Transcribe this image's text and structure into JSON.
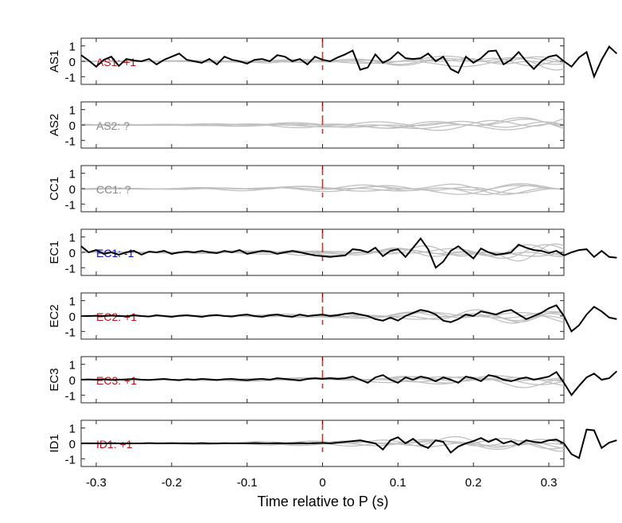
{
  "figure": {
    "xlabel": "Time relative to P (s)"
  },
  "colors": {
    "trace": "#000000",
    "background_traces": "#c0c0c0",
    "p_marker": "#e8251e",
    "label_positive": "#c0141b",
    "label_negative": "#0a10b4",
    "label_unknown": "#8a8a8a",
    "axes": "#262626"
  },
  "chart_data": {
    "type": "line",
    "xlim": [
      -0.32,
      0.32
    ],
    "ylim": [
      -1.5,
      1.5
    ],
    "x_ticks": [
      -0.3,
      -0.2,
      -0.1,
      0,
      0.1,
      0.2,
      0.3
    ],
    "x_tick_labels": [
      "-0.3",
      "-0.2",
      "-0.1",
      "0",
      "0.1",
      "0.2",
      "0.3"
    ],
    "y_ticks": [
      -1,
      0,
      1
    ],
    "y_tick_labels": [
      "-1",
      "0",
      "1"
    ],
    "p_marker_x": 0,
    "x_step": 0.01,
    "x_start": -0.32,
    "panels": [
      {
        "station": "AS1",
        "label": "AS1: +1",
        "polarity": "positive",
        "values": [
          0.4,
          0.05,
          -0.35,
          0.1,
          0.3,
          -0.3,
          0.15,
          0.05,
          0.0,
          0.15,
          -0.2,
          0.1,
          0.3,
          0.5,
          0.1,
          0.0,
          -0.1,
          0.15,
          -0.2,
          0.3,
          0.1,
          0.0,
          -0.15,
          0.1,
          0.15,
          0.0,
          0.4,
          0.3,
          0.0,
          0.15,
          -0.2,
          0.3,
          0.1,
          0.0,
          0.25,
          0.45,
          0.7,
          -0.55,
          -0.4,
          0.45,
          -0.1,
          0.15,
          0.6,
          0.2,
          0.15,
          0.2,
          0.5,
          0.0,
          0.3,
          -0.5,
          -0.75,
          0.3,
          -0.1,
          0.2,
          0.65,
          0.7,
          -0.2,
          0.1,
          0.6,
          0.0,
          -0.5,
          0.0,
          0.3,
          0.4,
          0.0,
          -0.35,
          0.25,
          0.6,
          -1.0,
          0.1,
          0.95,
          0.5
        ]
      },
      {
        "station": "AS2",
        "label": "AS2: ?",
        "polarity": "unknown",
        "values": []
      },
      {
        "station": "CC1",
        "label": "CC1: ?",
        "polarity": "unknown",
        "values": []
      },
      {
        "station": "EC1",
        "label": "EC1: -1",
        "polarity": "negative",
        "values": [
          0.4,
          0.0,
          0.15,
          -0.1,
          0.0,
          -0.15,
          0.0,
          0.1,
          -0.15,
          0.05,
          0.0,
          0.1,
          -0.1,
          0.0,
          0.05,
          0.0,
          0.1,
          0.0,
          -0.05,
          0.1,
          0.0,
          0.15,
          -0.1,
          0.0,
          0.1,
          0.05,
          -0.1,
          0.0,
          0.1,
          0.0,
          -0.1,
          -0.2,
          -0.25,
          -0.3,
          -0.25,
          -0.2,
          0.2,
          0.15,
          0.0,
          0.3,
          -0.25,
          0.1,
          0.2,
          -0.3,
          0.3,
          0.9,
          0.2,
          -1.0,
          -0.6,
          0.1,
          0.4,
          0.0,
          -0.4,
          0.25,
          0.0,
          -0.15,
          -0.1,
          0.0,
          0.5,
          0.3,
          0.15,
          0.1,
          -0.05,
          0.1,
          -0.2,
          0.0,
          0.15,
          0.2,
          -0.3,
          0.1,
          -0.3,
          -0.35
        ]
      },
      {
        "station": "EC2",
        "label": "EC2: +1",
        "polarity": "positive",
        "values": [
          0.0,
          0.0,
          0.02,
          0.0,
          0.03,
          0.0,
          -0.02,
          0.05,
          0.0,
          -0.03,
          0.05,
          0.0,
          -0.05,
          0.02,
          0.05,
          0.0,
          -0.05,
          0.03,
          0.06,
          0.0,
          -0.03,
          0.05,
          0.1,
          0.0,
          -0.05,
          0.05,
          0.1,
          0.0,
          -0.05,
          0.1,
          0.0,
          0.05,
          0.1,
          0.0,
          0.05,
          0.15,
          0.2,
          0.1,
          0.0,
          -0.2,
          -0.3,
          -0.1,
          -0.3,
          0.0,
          0.2,
          0.4,
          0.3,
          0.1,
          -0.3,
          -0.4,
          -0.2,
          0.1,
          0.0,
          0.3,
          0.2,
          0.1,
          0.3,
          0.4,
          0.1,
          -0.2,
          0.0,
          0.2,
          0.5,
          0.7,
          0.0,
          -1.0,
          -0.6,
          0.1,
          0.6,
          0.3,
          -0.1,
          -0.2
        ]
      },
      {
        "station": "EC3",
        "label": "EC3: +1",
        "polarity": "positive",
        "values": [
          0.0,
          0.02,
          0.0,
          0.03,
          -0.02,
          0.0,
          0.02,
          0.05,
          0.0,
          -0.02,
          0.02,
          0.05,
          0.0,
          -0.03,
          0.03,
          0.0,
          0.05,
          0.02,
          -0.02,
          0.03,
          0.05,
          0.0,
          -0.03,
          0.02,
          0.05,
          0.0,
          0.1,
          0.05,
          0.0,
          -0.05,
          0.05,
          0.1,
          0.05,
          0.1,
          0.05,
          0.1,
          0.2,
          0.0,
          -0.2,
          0.15,
          0.3,
          0.0,
          -0.2,
          0.15,
          0.0,
          0.2,
          0.1,
          -0.1,
          0.15,
          0.0,
          -0.2,
          0.2,
          0.1,
          -0.1,
          0.3,
          0.2,
          0.0,
          -0.1,
          0.05,
          0.15,
          0.0,
          0.1,
          0.2,
          0.5,
          -0.2,
          -1.0,
          -0.4,
          0.15,
          0.4,
          0.0,
          0.1,
          0.55
        ]
      },
      {
        "station": "ID1",
        "label": "ID1: +1",
        "polarity": "positive",
        "values": [
          0.0,
          0.0,
          0.0,
          0.0,
          0.01,
          0.0,
          0.0,
          0.0,
          0.0,
          0.02,
          0.0,
          0.0,
          0.01,
          0.0,
          0.0,
          0.0,
          0.02,
          0.0,
          0.0,
          0.01,
          0.0,
          0.0,
          0.0,
          0.02,
          0.0,
          0.0,
          0.01,
          0.0,
          0.0,
          0.02,
          0.0,
          0.01,
          0.03,
          0.0,
          0.05,
          0.1,
          0.15,
          0.2,
          0.1,
          0.0,
          -0.4,
          0.2,
          0.4,
          0.0,
          0.3,
          -0.1,
          -0.3,
          0.2,
          0.1,
          -0.6,
          -0.2,
          0.0,
          0.15,
          0.35,
          0.1,
          0.3,
          0.0,
          0.15,
          -0.1,
          0.2,
          0.1,
          0.05,
          0.2,
          0.25,
          0.0,
          -0.7,
          -0.95,
          0.9,
          0.85,
          -0.3,
          0.05,
          0.2
        ]
      }
    ]
  }
}
